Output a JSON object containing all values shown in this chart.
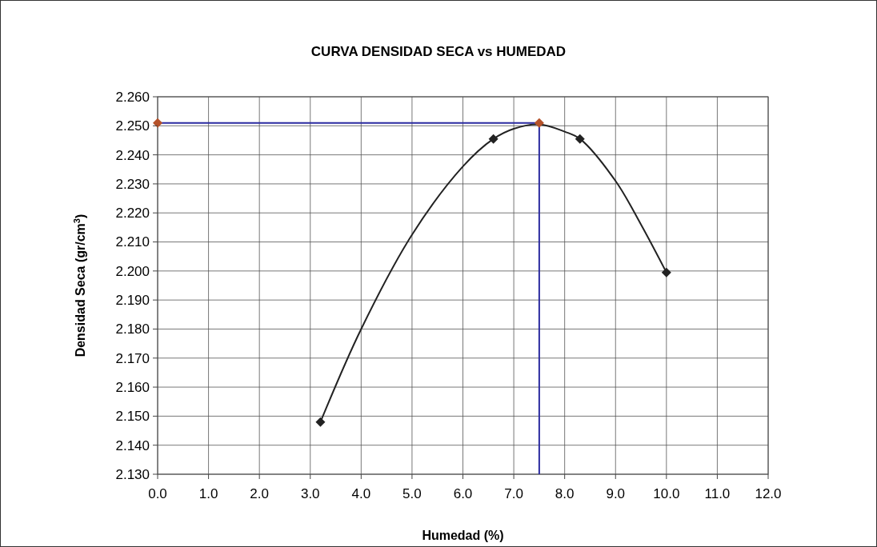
{
  "chart_data": {
    "type": "line",
    "title": "CURVA DENSIDAD SECA vs HUMEDAD",
    "xlabel": "Humedad (%)",
    "ylabel": "Densidad Seca (gr/cm$^{3}$)",
    "xlim": [
      0,
      12
    ],
    "xticks": [
      {
        "value": 0,
        "label": "0.0"
      },
      {
        "value": 1,
        "label": "1.0"
      },
      {
        "value": 2,
        "label": "2.0"
      },
      {
        "value": 3,
        "label": "3.0"
      },
      {
        "value": 4,
        "label": "4.0"
      },
      {
        "value": 5,
        "label": "5.0"
      },
      {
        "value": 6,
        "label": "6.0"
      },
      {
        "value": 7,
        "label": "7.0"
      },
      {
        "value": 8,
        "label": "8.0"
      },
      {
        "value": 9,
        "label": "9.0"
      },
      {
        "value": 10,
        "label": "10.0"
      },
      {
        "value": 11,
        "label": "11.0"
      },
      {
        "value": 12,
        "label": "12.0"
      }
    ],
    "ylim": [
      2.13,
      2.26
    ],
    "yticks": [
      {
        "value": 2.13,
        "label": "2.130"
      },
      {
        "value": 2.14,
        "label": "2.140"
      },
      {
        "value": 2.15,
        "label": "2.150"
      },
      {
        "value": 2.16,
        "label": "2.160"
      },
      {
        "value": 2.17,
        "label": "2.170"
      },
      {
        "value": 2.18,
        "label": "2.180"
      },
      {
        "value": 2.19,
        "label": "2.190"
      },
      {
        "value": 2.2,
        "label": "2.200"
      },
      {
        "value": 2.21,
        "label": "2.210"
      },
      {
        "value": 2.22,
        "label": "2.220"
      },
      {
        "value": 2.23,
        "label": "2.230"
      },
      {
        "value": 2.24,
        "label": "2.240"
      },
      {
        "value": 2.25,
        "label": "2.250"
      },
      {
        "value": 2.26,
        "label": "2.260"
      }
    ],
    "grid": true,
    "line_style": "solid",
    "series": [
      {
        "color": "#222222",
        "marker": "none",
        "x": [
          3.2,
          4.0,
          5.0,
          6.0,
          6.6,
          7.0,
          7.5,
          8.0,
          8.3,
          9.0,
          9.5,
          10.0
        ],
        "values": [
          2.148,
          2.18,
          2.2125,
          2.236,
          2.2455,
          2.249,
          2.2505,
          2.248,
          2.2455,
          2.231,
          2.216,
          2.1995
        ]
      },
      {
        "type": "scatter",
        "color": "#222222",
        "marker": "diamond",
        "x": [
          3.2,
          6.6,
          8.3,
          10.0
        ],
        "values": [
          2.148,
          2.2455,
          2.2455,
          2.1995
        ]
      },
      {
        "color": "#2b2ba0",
        "marker": "none",
        "x": [
          0,
          7.5,
          7.5
        ],
        "values": [
          2.251,
          2.251,
          2.13
        ]
      },
      {
        "type": "scatter",
        "color": "#b5522a",
        "marker": "diamond",
        "x": [
          0,
          7.5
        ],
        "values": [
          2.251,
          2.251
        ]
      }
    ]
  }
}
